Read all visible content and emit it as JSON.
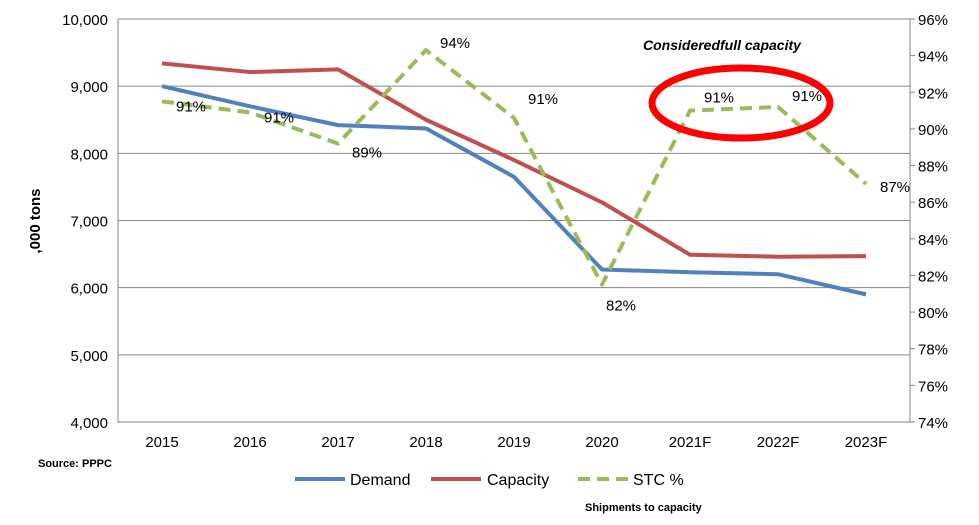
{
  "chart_data": {
    "type": "line",
    "ylabel": ",000 tons",
    "categories": [
      "2015",
      "2016",
      "2017",
      "2018",
      "2019",
      "2020",
      "2021F",
      "2022F",
      "2023F"
    ],
    "y_left": {
      "min": 4000,
      "max": 10000,
      "step": 1000,
      "tick_labels": [
        "4,000",
        "5,000",
        "6,000",
        "7,000",
        "8,000",
        "9,000",
        "10,000"
      ]
    },
    "y_right": {
      "min": 74,
      "max": 96,
      "step": 2,
      "tick_labels": [
        "74%",
        "76%",
        "78%",
        "80%",
        "82%",
        "84%",
        "86%",
        "88%",
        "90%",
        "92%",
        "94%",
        "96%"
      ]
    },
    "grid": "horizontal",
    "legend_position": "bottom",
    "series": [
      {
        "name": "Demand",
        "axis": "left",
        "color": "#4F81BD",
        "dash": "solid",
        "values": [
          9000,
          8700,
          8420,
          8370,
          7650,
          6270,
          6230,
          6200,
          5900
        ]
      },
      {
        "name": "Capacity",
        "axis": "left",
        "color": "#C0504D",
        "dash": "solid",
        "values": [
          9340,
          9210,
          9250,
          8500,
          7900,
          7270,
          6490,
          6460,
          6470
        ]
      },
      {
        "name": "STC %",
        "axis": "right",
        "color": "#9BBB59",
        "dash": "dashed",
        "values": [
          91.5,
          90.9,
          89.2,
          94.3,
          90.6,
          81.5,
          91.0,
          91.2,
          87.0
        ],
        "data_labels": [
          "91%",
          "91%",
          "89%",
          "94%",
          "91%",
          "82%",
          "91%",
          "91%",
          "87%"
        ]
      }
    ],
    "annotations": {
      "full_capacity": "Consideredfull capacity",
      "source": "Source: PPPC",
      "footnote": "Shipments to capacity"
    }
  }
}
